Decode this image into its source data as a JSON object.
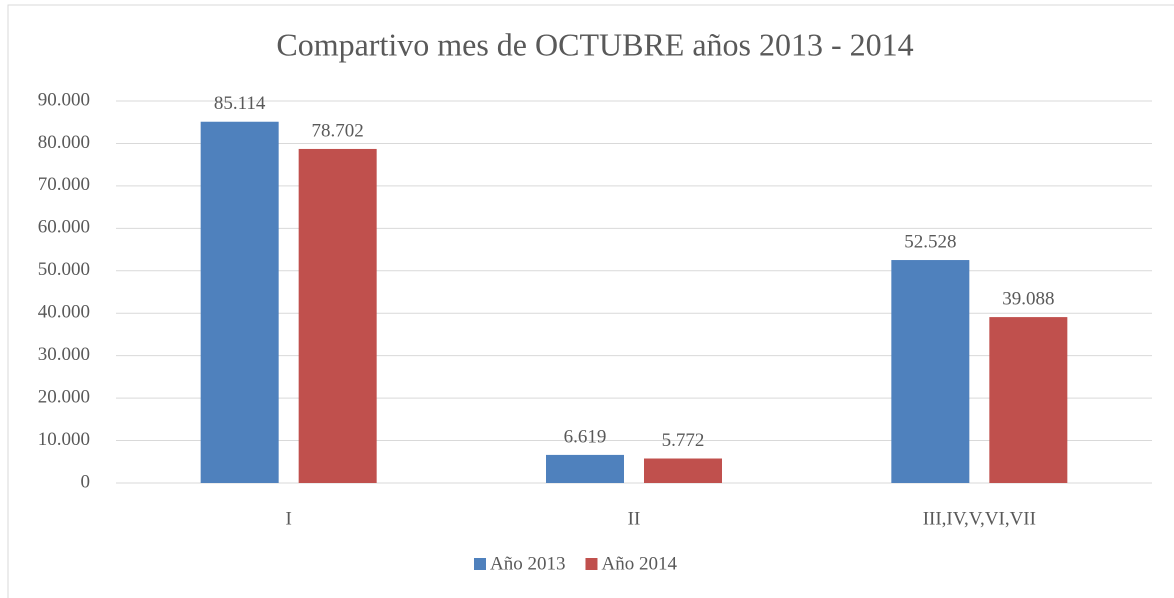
{
  "chart_data": {
    "type": "bar",
    "title": "Compartivo mes de OCTUBRE años 2013 - 2014",
    "categories": [
      "I",
      "II",
      "III,IV,V,VI,VII"
    ],
    "series": [
      {
        "name": "Año 2013",
        "color": "#4f81bd",
        "values": [
          85114,
          6619,
          52528
        ],
        "value_labels": [
          "85.114",
          "6.619",
          "52.528"
        ]
      },
      {
        "name": "Año 2014",
        "color": "#c0504d",
        "values": [
          78702,
          5772,
          39088
        ],
        "value_labels": [
          "78.702",
          "5.772",
          "39.088"
        ]
      }
    ],
    "ylim": [
      0,
      90000
    ],
    "yticks": [
      0,
      {
        "value": 10000,
        "label": "10.000"
      },
      {
        "value": 20000,
        "label": "20.000"
      },
      {
        "value": 30000,
        "label": "30.000"
      },
      {
        "value": 40000,
        "label": "40.000"
      },
      {
        "value": 50000,
        "label": "50.000"
      },
      {
        "value": 60000,
        "label": "60.000"
      },
      {
        "value": 70000,
        "label": "70.000"
      },
      {
        "value": 80000,
        "label": "80.000"
      },
      {
        "value": 90000,
        "label": "90.000"
      }
    ],
    "grid": true,
    "legend": "bottom"
  }
}
